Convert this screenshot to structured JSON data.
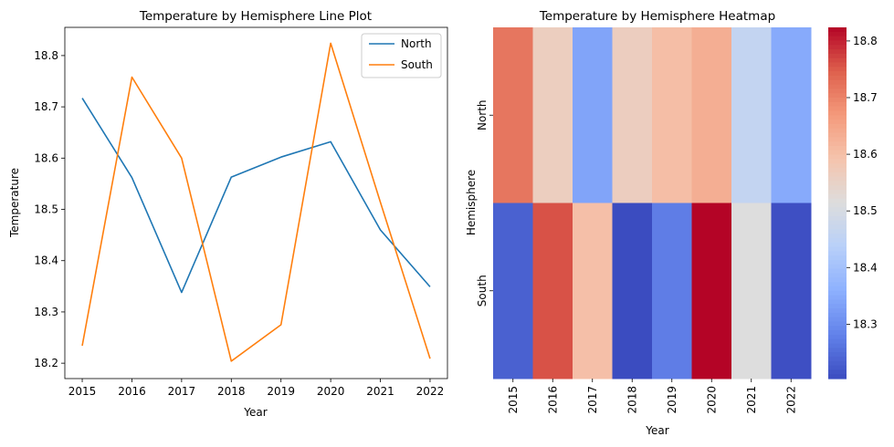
{
  "chart_data": [
    {
      "type": "line",
      "title": "Temperature by Hemisphere Line Plot",
      "xlabel": "Year",
      "ylabel": "Temperature",
      "x": [
        2015,
        2016,
        2017,
        2018,
        2019,
        2020,
        2021,
        2022
      ],
      "xlim": [
        2014.65,
        2022.35
      ],
      "ylim": [
        18.17,
        18.855
      ],
      "yticks": [
        18.2,
        18.3,
        18.4,
        18.5,
        18.6,
        18.7,
        18.8
      ],
      "grid": false,
      "legend": "top-right",
      "series": [
        {
          "name": "North",
          "color": "#1f77b4",
          "values": [
            18.717,
            18.562,
            18.338,
            18.563,
            18.602,
            18.632,
            18.46,
            18.349
          ]
        },
        {
          "name": "South",
          "color": "#ff7f0e",
          "values": [
            18.234,
            18.758,
            18.6,
            18.204,
            18.275,
            18.824,
            18.514,
            18.209
          ]
        }
      ]
    },
    {
      "type": "heatmap",
      "title": "Temperature by Hemisphere Heatmap",
      "xlabel": "Year",
      "ylabel": "Hemisphere",
      "x": [
        "2015",
        "2016",
        "2017",
        "2018",
        "2019",
        "2020",
        "2021",
        "2022"
      ],
      "y": [
        "North",
        "South"
      ],
      "colormap": "coolwarm",
      "colorbar_range": [
        18.204,
        18.824
      ],
      "colorbar_ticks": [
        18.3,
        18.4,
        18.5,
        18.6,
        18.7,
        18.8
      ],
      "values": [
        [
          18.717,
          18.562,
          18.338,
          18.563,
          18.602,
          18.632,
          18.46,
          18.349
        ],
        [
          18.234,
          18.758,
          18.6,
          18.204,
          18.275,
          18.824,
          18.514,
          18.209
        ]
      ]
    }
  ]
}
